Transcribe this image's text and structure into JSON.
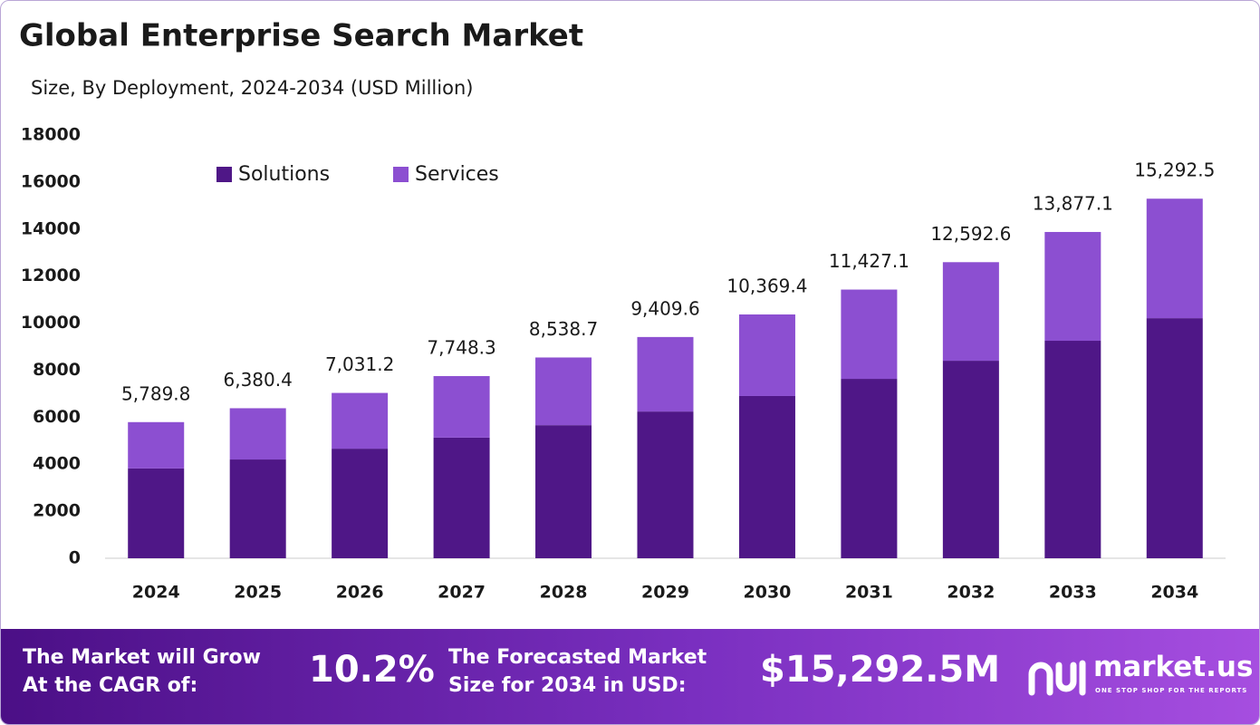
{
  "chart_data": {
    "type": "stacked-bar",
    "title": "Global Enterprise Search Market",
    "subtitle": "Size, By Deployment, 2024-2034 (USD Million)",
    "categories": [
      "2024",
      "2025",
      "2026",
      "2027",
      "2028",
      "2029",
      "2030",
      "2031",
      "2032",
      "2033",
      "2034"
    ],
    "series": [
      {
        "name": "Solutions",
        "color": "#4f1787",
        "values": [
          3820,
          4200,
          4660,
          5130,
          5660,
          6240,
          6900,
          7630,
          8400,
          9250,
          10210
        ]
      },
      {
        "name": "Services",
        "color": "#8c4fd1",
        "values": [
          1969.8,
          2180.4,
          2371.2,
          2618.3,
          2878.7,
          3169.6,
          3469.4,
          3797.1,
          4192.6,
          4627.1,
          5082.5
        ]
      }
    ],
    "totals": [
      5789.8,
      6380.4,
      7031.2,
      7748.3,
      8538.7,
      9409.6,
      10369.4,
      11427.1,
      12592.6,
      13877.1,
      15292.5
    ],
    "value_labels": [
      "5,789.8",
      "6,380.4",
      "7,031.2",
      "7,748.3",
      "8,538.7",
      "9,409.6",
      "10,369.4",
      "11,427.1",
      "12,592.6",
      "13,877.1",
      "15,292.5"
    ],
    "ylim": [
      0,
      18000
    ],
    "yticks": [
      0,
      2000,
      4000,
      6000,
      8000,
      10000,
      12000,
      14000,
      16000,
      18000
    ],
    "grid": false,
    "legend": "top-left"
  },
  "footer": {
    "cagr_text": [
      "The Market will Grow",
      "At the CAGR of:"
    ],
    "cagr_value": "10.2%",
    "forecast_text": [
      "The Forecasted Market",
      "Size for 2034 in USD:"
    ],
    "forecast_value": "$15,292.5M",
    "brand": "market.us",
    "tagline": "ONE STOP SHOP FOR THE REPORTS"
  }
}
